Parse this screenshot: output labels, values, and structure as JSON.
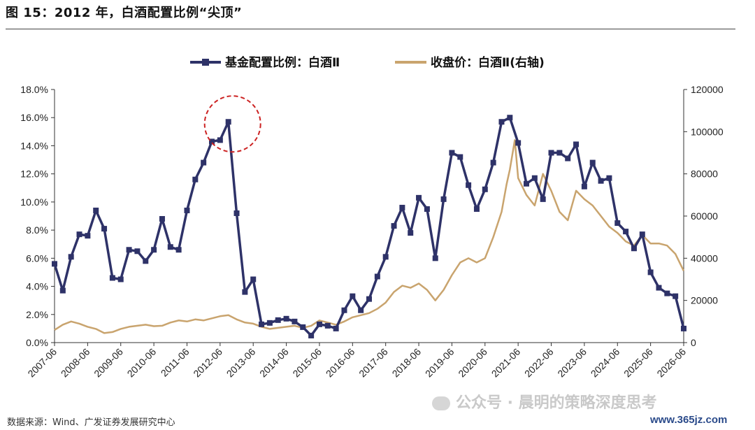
{
  "figure": {
    "title": "图 15：2012 年，白酒配置比例“尖顶”",
    "source": "数据来源：Wind、广发证券发展研究中心",
    "watermark": "公众号 · 晨明的策略深度思考",
    "site_badge": "www.365jz.com"
  },
  "chart_data": {
    "type": "line",
    "legend_position": "top-center",
    "grid": false,
    "x_tick_labels": [
      "2007-06",
      "2008-06",
      "2009-06",
      "2010-06",
      "2011-06",
      "2012-06",
      "2013-06",
      "2014-06",
      "2015-06",
      "2016-06",
      "2017-06",
      "2018-06",
      "2019-06",
      "2020-06",
      "2021-06",
      "2022-06",
      "2023-06",
      "2024-06",
      "2025-06",
      "2026-06"
    ],
    "y_left": {
      "ticks": [
        "0.0%",
        "2.0%",
        "4.0%",
        "6.0%",
        "8.0%",
        "10.0%",
        "12.0%",
        "14.0%",
        "16.0%",
        "18.0%"
      ],
      "range": [
        0,
        18
      ]
    },
    "y_right": {
      "ticks": [
        "0",
        "20000",
        "40000",
        "60000",
        "80000",
        "100000",
        "120000"
      ],
      "range": [
        0,
        120000
      ]
    },
    "series": [
      {
        "name": "基金配置比例：白酒Ⅱ",
        "axis": "left",
        "color": "#2e3268",
        "marker": "square",
        "x": [
          2007.5,
          2007.75,
          2008.0,
          2008.25,
          2008.5,
          2008.75,
          2009.0,
          2009.25,
          2009.5,
          2009.75,
          2010.0,
          2010.25,
          2010.5,
          2010.75,
          2011.0,
          2011.25,
          2011.5,
          2011.75,
          2012.0,
          2012.25,
          2012.5,
          2012.75,
          2013.0,
          2013.25,
          2013.5,
          2013.75,
          2014.0,
          2014.25,
          2014.5,
          2014.75,
          2015.0,
          2015.25,
          2015.5,
          2015.75,
          2016.0,
          2016.25,
          2016.5,
          2016.75,
          2017.0,
          2017.25,
          2017.5,
          2017.75,
          2018.0,
          2018.25,
          2018.5,
          2018.75,
          2019.0,
          2019.25,
          2019.5,
          2019.75,
          2020.0,
          2020.25,
          2020.5,
          2020.75,
          2021.0,
          2021.25,
          2021.5,
          2021.75,
          2022.0,
          2022.25,
          2022.5,
          2022.75,
          2023.0,
          2023.25,
          2023.5,
          2023.75,
          2024.0,
          2024.25,
          2024.5,
          2024.75,
          2025.0,
          2025.25,
          2025.5,
          2025.75,
          2026.0,
          2026.25,
          2026.5
        ],
        "values": [
          5.6,
          3.7,
          6.1,
          7.7,
          7.6,
          9.4,
          8.1,
          4.6,
          4.5,
          6.6,
          6.5,
          5.8,
          6.6,
          8.8,
          6.8,
          6.6,
          9.4,
          11.6,
          12.8,
          14.3,
          14.4,
          15.7,
          9.2,
          3.6,
          4.5,
          1.3,
          1.4,
          1.6,
          1.7,
          1.5,
          1.1,
          0.5,
          1.3,
          1.2,
          1.0,
          2.3,
          3.3,
          2.3,
          3.1,
          4.7,
          6.1,
          8.3,
          9.6,
          7.8,
          10.3,
          9.5,
          6.0,
          10.2,
          13.5,
          13.2,
          11.2,
          9.5,
          10.9,
          12.8,
          15.7,
          16.0,
          14.2,
          11.3,
          11.7,
          10.2,
          13.5,
          13.5,
          13.1,
          14.1,
          11.1,
          12.8,
          11.5,
          11.7,
          8.5,
          7.9,
          6.7,
          7.7,
          5.0,
          3.9,
          3.5,
          3.3,
          1.0
        ]
      },
      {
        "name": "收盘价：白酒Ⅱ(右轴)",
        "axis": "right",
        "color": "#c9a46e",
        "marker": "none",
        "x": [
          2007.5,
          2007.75,
          2008.0,
          2008.25,
          2008.5,
          2008.75,
          2009.0,
          2009.25,
          2009.5,
          2009.75,
          2010.0,
          2010.25,
          2010.5,
          2010.75,
          2011.0,
          2011.25,
          2011.5,
          2011.75,
          2012.0,
          2012.25,
          2012.5,
          2012.75,
          2013.0,
          2013.25,
          2013.5,
          2013.75,
          2014.0,
          2014.25,
          2014.5,
          2014.75,
          2015.0,
          2015.25,
          2015.5,
          2015.75,
          2016.0,
          2016.25,
          2016.5,
          2016.75,
          2017.0,
          2017.25,
          2017.5,
          2017.75,
          2018.0,
          2018.25,
          2018.5,
          2018.75,
          2019.0,
          2019.25,
          2019.5,
          2019.75,
          2020.0,
          2020.25,
          2020.5,
          2020.75,
          2021.0,
          2021.15,
          2021.25,
          2021.4,
          2021.5,
          2021.75,
          2022.0,
          2022.25,
          2022.5,
          2022.75,
          2023.0,
          2023.25,
          2023.5,
          2023.75,
          2024.0,
          2024.25,
          2024.5,
          2024.75,
          2025.0,
          2025.25,
          2025.5,
          2025.75,
          2026.0,
          2026.25,
          2026.5
        ],
        "values": [
          6000,
          8500,
          10000,
          9000,
          7500,
          6500,
          4500,
          5000,
          6500,
          7500,
          8000,
          8500,
          7800,
          8000,
          9500,
          10500,
          10000,
          11000,
          10500,
          11500,
          12500,
          13000,
          11000,
          9500,
          9000,
          7500,
          6500,
          7000,
          7500,
          8000,
          7000,
          8000,
          10500,
          9500,
          8500,
          10000,
          12000,
          13000,
          14000,
          16000,
          19000,
          24000,
          27000,
          26000,
          28000,
          25000,
          20000,
          25000,
          32000,
          38000,
          40000,
          38000,
          40000,
          50000,
          62000,
          75000,
          82000,
          96000,
          78000,
          70000,
          65000,
          80000,
          72000,
          62000,
          58000,
          72000,
          68000,
          65000,
          60000,
          55000,
          52000,
          48000,
          46000,
          51000,
          47000,
          47000,
          46000,
          42000,
          34000
        ]
      }
    ]
  },
  "annotation": {
    "type": "dashed-circle",
    "color": "#cc2222",
    "target_year": 2012.75,
    "target_value": 15.7
  },
  "legend": {
    "series1_label": "基金配置比例：白酒Ⅱ",
    "series2_label": "收盘价：白酒Ⅱ(右轴)"
  }
}
